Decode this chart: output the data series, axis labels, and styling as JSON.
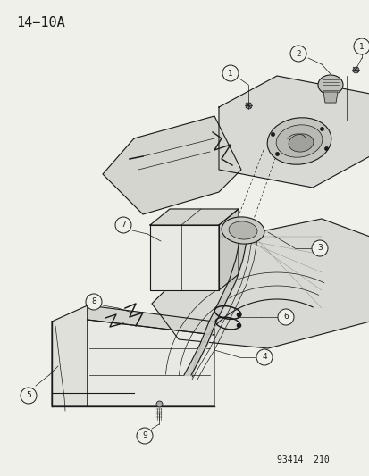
{
  "title": "14−10A",
  "footer": "93414  210",
  "bg_color": "#f5f5f0",
  "line_color": "#1a1a1a",
  "title_fontsize": 11,
  "footer_fontsize": 7,
  "figsize": [
    4.14,
    5.33
  ],
  "dpi": 100
}
